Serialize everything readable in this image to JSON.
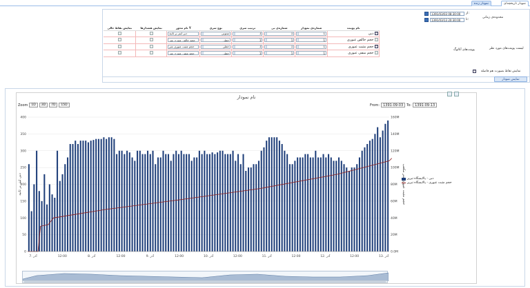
{
  "tabs": [
    {
      "label": "نمودار تاریخچه‌ای",
      "active": false
    },
    {
      "label": "نمودار زنده",
      "active": true
    }
  ],
  "time_range": {
    "label": "محدوده‌ی زمانی",
    "from_label": "از:",
    "from_value": "1391/03/03 08:30:00",
    "to_label": "تا:",
    "to_value": "1391/03/13 20:30:00"
  },
  "points_label": "لیست پوینت‌های مورد نظر",
  "analog_label": "پوینت‌های آنالوگ",
  "columns": {
    "point_name": "نام پوینت",
    "chart_number": "شماره‌ی نمودار",
    "axis_number": "شماره‌ی بی",
    "series_order": "ترتیب سری",
    "series_type": "نوع سری",
    "y_axis_name": "نام محور Y",
    "show_limits": "نمایش هشدارها",
    "show_empty": "نمایش نقاط خالی"
  },
  "rows": [
    {
      "checked": true,
      "name": "دبی",
      "chart": "1",
      "axis": "1",
      "order": "1",
      "type": "ستونی",
      "yname": "دبی لیتر بر ثانیه"
    },
    {
      "checked": false,
      "name": "حجم خالص عبوری",
      "chart": "1",
      "axis": "1",
      "order": "1",
      "type": "خطی",
      "yname": "حجم خالص عبوری متر"
    },
    {
      "checked": true,
      "name": "حجم مثبت عبوری",
      "chart": "1",
      "axis": "1",
      "order": "1",
      "type": "خطی",
      "yname": "حجم مثبت عبوری متر"
    },
    {
      "checked": false,
      "name": "حجم منفی عبوری",
      "chart": "1",
      "axis": "1",
      "order": "1",
      "type": "خطی",
      "yname": "حجم منفی عبوری متر"
    }
  ],
  "show_points_label": "نمایش نقاط بصورت هم فاصله",
  "show_button": "نمایش نمودار",
  "chart": {
    "title": "نام نمودار",
    "zoom_label": "Zoom",
    "zoom_buttons": [
      "1D",
      "3D",
      "7D",
      "15D"
    ],
    "from_label": "From:",
    "from": "1391-09-03",
    "to_label": "To:",
    "to": "1391-09-13",
    "left_axis_title": "دبی لیتر بر ثانیه",
    "right_axis_title": "حجم مثبت عبوری متر مکعب",
    "left_ticks": [
      "400",
      "350",
      "300",
      "250",
      "200",
      "150",
      "100",
      "50",
      "0"
    ],
    "right_ticks": [
      "160M",
      "140M",
      "120M",
      "100M",
      "80M",
      "60M",
      "40M",
      "20M",
      "0.0M"
    ],
    "x_ticks": [
      "7. آذر",
      "12:00",
      "8. آذر",
      "12:00",
      "9. آذر",
      "12:00",
      "10. آذر",
      "12:00",
      "11. آذر",
      "12:00",
      "12. آذر",
      "12:00",
      "13. آذر"
    ],
    "legend": [
      {
        "label": "دبی - پالایشگاه تبریز",
        "color": "#1f3f7a"
      },
      {
        "label": "حجم مثبت عبوری - پالایشگاه تبریز",
        "color": "#8b1a1a"
      }
    ]
  },
  "chart_data": {
    "type": "bar",
    "series": [
      {
        "name": "دبی - پالایشگاه تبریز",
        "axis": "left",
        "kind": "column",
        "values": [
          260,
          120,
          200,
          300,
          180,
          150,
          230,
          140,
          200,
          170,
          160,
          300,
          210,
          230,
          260,
          280,
          320,
          320,
          330,
          320,
          330,
          330,
          330,
          325,
          330,
          332,
          335,
          335,
          335,
          340,
          335,
          340,
          340,
          335,
          290,
          300,
          300,
          290,
          300,
          295,
          280,
          270,
          300,
          300,
          290,
          290,
          300,
          290,
          300,
          260,
          280,
          280,
          300,
          290,
          290,
          270,
          290,
          300,
          290,
          300,
          290,
          290,
          290,
          270,
          280,
          280,
          300,
          290,
          300,
          290,
          290,
          295,
          290,
          295,
          300,
          300,
          290,
          290,
          290,
          300,
          270,
          290,
          260,
          290,
          240,
          250,
          250,
          260,
          260,
          270,
          300,
          310,
          330,
          340,
          340,
          340,
          340,
          330,
          320,
          300,
          290,
          260,
          260,
          270,
          280,
          280,
          280,
          290,
          290,
          280,
          280,
          300,
          280,
          280,
          290,
          280,
          290,
          280,
          270,
          270,
          280,
          270,
          260,
          250,
          240,
          250,
          250,
          260,
          280,
          300,
          310,
          320,
          330,
          335,
          350,
          370,
          340,
          360,
          380,
          390
        ]
      },
      {
        "name": "حجم مثبت عبوری - پالایشگاه تبریز",
        "axis": "right",
        "kind": "line",
        "points": [
          [
            0,
            0
          ],
          [
            4,
            0
          ],
          [
            5,
            30
          ],
          [
            8,
            32
          ],
          [
            10,
            40
          ],
          [
            30,
            50
          ],
          [
            60,
            62
          ],
          [
            90,
            75
          ],
          [
            120,
            92
          ],
          [
            140,
            108
          ],
          [
            141,
            111
          ]
        ]
      }
    ],
    "left_ylim": [
      0,
      400
    ],
    "right_ylim": [
      0,
      160
    ],
    "grid": true
  }
}
